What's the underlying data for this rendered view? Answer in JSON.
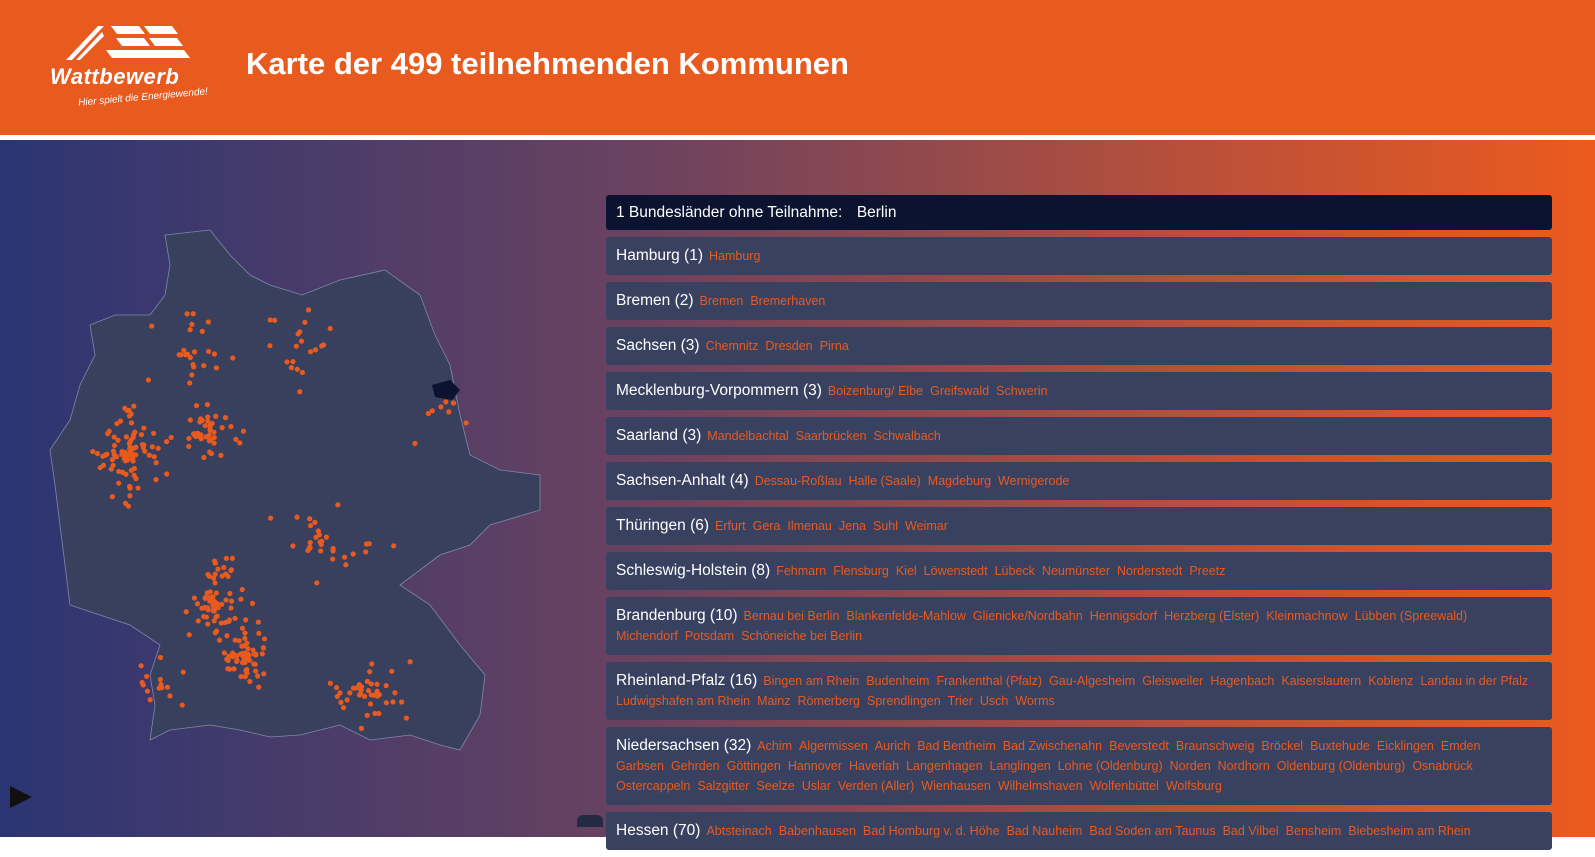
{
  "header": {
    "logo_text": "Wattbewerb",
    "logo_tagline": "Hier spielt die Energiewende!",
    "title": "Karte der 499 teilnehmenden Kommunen"
  },
  "colors": {
    "brand": "#e95a1f",
    "row_bg": "#394160",
    "banner_bg": "#0b1331"
  },
  "banner": {
    "label": "1 Bundesländer ohne Teilnahme:",
    "value": "Berlin"
  },
  "states": [
    {
      "label": "Hamburg (1)",
      "cities": [
        "Hamburg"
      ]
    },
    {
      "label": "Bremen (2)",
      "cities": [
        "Bremen",
        "Bremerhaven"
      ]
    },
    {
      "label": "Sachsen (3)",
      "cities": [
        "Chemnitz",
        "Dresden",
        "Pirna"
      ]
    },
    {
      "label": "Mecklenburg-Vorpommern (3)",
      "cities": [
        "Boizenburg/ Elbe",
        "Greifswald",
        "Schwerin"
      ]
    },
    {
      "label": "Saarland (3)",
      "cities": [
        "Mandelbachtal",
        "Saarbrücken",
        "Schwalbach"
      ]
    },
    {
      "label": "Sachsen-Anhalt (4)",
      "cities": [
        "Dessau-Roßlau",
        "Halle (Saale)",
        "Magdeburg",
        "Wernigerode"
      ]
    },
    {
      "label": "Thüringen (6)",
      "cities": [
        "Erfurt",
        "Gera",
        "Ilmenau",
        "Jena",
        "Suhl",
        "Weimar"
      ]
    },
    {
      "label": "Schleswig-Holstein (8)",
      "cities": [
        "Fehmarn",
        "Flensburg",
        "Kiel",
        "Löwenstedt",
        "Lübeck",
        "Neumünster",
        "Norderstedt",
        "Preetz"
      ]
    },
    {
      "label": "Brandenburg (10)",
      "cities": [
        "Bernau bei Berlin",
        "Blankenfelde-Mahlow",
        "Glienicke/Nordbahn",
        "Hennigsdorf",
        "Herzberg (Elster)",
        "Kleinmachnow",
        "Lübben (Spreewald)",
        "Michendorf",
        "Potsdam",
        "Schöneiche bei Berlin"
      ]
    },
    {
      "label": "Rheinland-Pfalz (16)",
      "cities": [
        "Bingen am Rhein",
        "Budenheim",
        "Frankenthal (Pfalz)",
        "Gau-Algesheim",
        "Gleisweiler",
        "Hagenbach",
        "Kaiserslautern",
        "Koblenz",
        "Landau in der Pfalz",
        "Ludwigshafen am Rhein",
        "Mainz",
        "Römerberg",
        "Sprendlingen",
        "Trier",
        "Usch",
        "Worms"
      ]
    },
    {
      "label": "Niedersachsen (32)",
      "cities": [
        "Achim",
        "Algermissen",
        "Aurich",
        "Bad Bentheim",
        "Bad Zwischenahn",
        "Beverstedt",
        "Braunschweig",
        "Bröckel",
        "Buxtehude",
        "Eicklingen",
        "Emden",
        "Garbsen",
        "Gehrden",
        "Göttingen",
        "Hannover",
        "Haverlah",
        "Langenhagen",
        "Langlingen",
        "Lohne (Oldenburg)",
        "Norden",
        "Nordhorn",
        "Oldenburg (Oldenburg)",
        "Osnabrück",
        "Ostercappeln",
        "Salzgitter",
        "Seelze",
        "Uslar",
        "Verden (Aller)",
        "Wienhausen",
        "Wilhelmshaven",
        "Wolfenbüttel",
        "Wolfsburg"
      ]
    },
    {
      "label": "Hessen (70)",
      "cities": [
        "Abtsteinach",
        "Babenhausen",
        "Bad Homburg v. d. Höhe",
        "Bad Nauheim",
        "Bad Soden am Taunus",
        "Bad Vilbel",
        "Bensheim",
        "Biebesheim am Rhein"
      ]
    }
  ]
}
